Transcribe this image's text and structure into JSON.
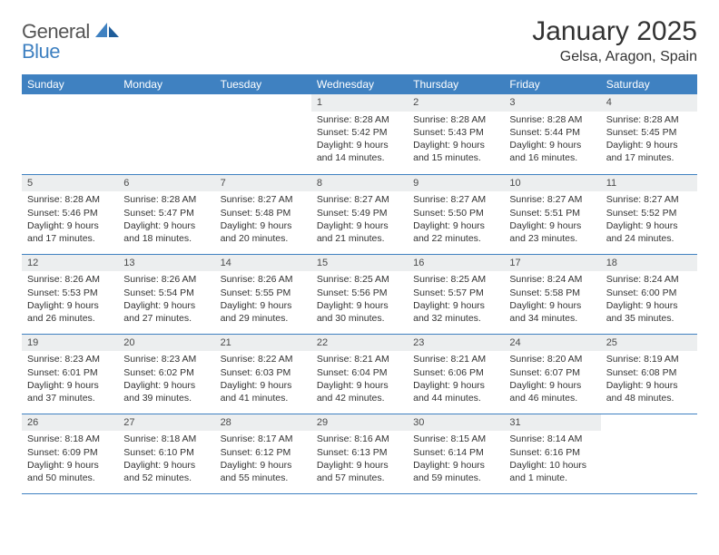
{
  "brand": {
    "part1": "General",
    "part2": "Blue"
  },
  "title": "January 2025",
  "location": "Gelsa, Aragon, Spain",
  "colors": {
    "header_bg": "#3f81c1",
    "header_fg": "#ffffff",
    "daynum_bg": "#eceeef",
    "rule": "#3f81c1",
    "text": "#333333"
  },
  "day_names": [
    "Sunday",
    "Monday",
    "Tuesday",
    "Wednesday",
    "Thursday",
    "Friday",
    "Saturday"
  ],
  "weeks": [
    [
      null,
      null,
      null,
      {
        "n": "1",
        "sr": "Sunrise: 8:28 AM",
        "ss": "Sunset: 5:42 PM",
        "dl": "Daylight: 9 hours and 14 minutes."
      },
      {
        "n": "2",
        "sr": "Sunrise: 8:28 AM",
        "ss": "Sunset: 5:43 PM",
        "dl": "Daylight: 9 hours and 15 minutes."
      },
      {
        "n": "3",
        "sr": "Sunrise: 8:28 AM",
        "ss": "Sunset: 5:44 PM",
        "dl": "Daylight: 9 hours and 16 minutes."
      },
      {
        "n": "4",
        "sr": "Sunrise: 8:28 AM",
        "ss": "Sunset: 5:45 PM",
        "dl": "Daylight: 9 hours and 17 minutes."
      }
    ],
    [
      {
        "n": "5",
        "sr": "Sunrise: 8:28 AM",
        "ss": "Sunset: 5:46 PM",
        "dl": "Daylight: 9 hours and 17 minutes."
      },
      {
        "n": "6",
        "sr": "Sunrise: 8:28 AM",
        "ss": "Sunset: 5:47 PM",
        "dl": "Daylight: 9 hours and 18 minutes."
      },
      {
        "n": "7",
        "sr": "Sunrise: 8:27 AM",
        "ss": "Sunset: 5:48 PM",
        "dl": "Daylight: 9 hours and 20 minutes."
      },
      {
        "n": "8",
        "sr": "Sunrise: 8:27 AM",
        "ss": "Sunset: 5:49 PM",
        "dl": "Daylight: 9 hours and 21 minutes."
      },
      {
        "n": "9",
        "sr": "Sunrise: 8:27 AM",
        "ss": "Sunset: 5:50 PM",
        "dl": "Daylight: 9 hours and 22 minutes."
      },
      {
        "n": "10",
        "sr": "Sunrise: 8:27 AM",
        "ss": "Sunset: 5:51 PM",
        "dl": "Daylight: 9 hours and 23 minutes."
      },
      {
        "n": "11",
        "sr": "Sunrise: 8:27 AM",
        "ss": "Sunset: 5:52 PM",
        "dl": "Daylight: 9 hours and 24 minutes."
      }
    ],
    [
      {
        "n": "12",
        "sr": "Sunrise: 8:26 AM",
        "ss": "Sunset: 5:53 PM",
        "dl": "Daylight: 9 hours and 26 minutes."
      },
      {
        "n": "13",
        "sr": "Sunrise: 8:26 AM",
        "ss": "Sunset: 5:54 PM",
        "dl": "Daylight: 9 hours and 27 minutes."
      },
      {
        "n": "14",
        "sr": "Sunrise: 8:26 AM",
        "ss": "Sunset: 5:55 PM",
        "dl": "Daylight: 9 hours and 29 minutes."
      },
      {
        "n": "15",
        "sr": "Sunrise: 8:25 AM",
        "ss": "Sunset: 5:56 PM",
        "dl": "Daylight: 9 hours and 30 minutes."
      },
      {
        "n": "16",
        "sr": "Sunrise: 8:25 AM",
        "ss": "Sunset: 5:57 PM",
        "dl": "Daylight: 9 hours and 32 minutes."
      },
      {
        "n": "17",
        "sr": "Sunrise: 8:24 AM",
        "ss": "Sunset: 5:58 PM",
        "dl": "Daylight: 9 hours and 34 minutes."
      },
      {
        "n": "18",
        "sr": "Sunrise: 8:24 AM",
        "ss": "Sunset: 6:00 PM",
        "dl": "Daylight: 9 hours and 35 minutes."
      }
    ],
    [
      {
        "n": "19",
        "sr": "Sunrise: 8:23 AM",
        "ss": "Sunset: 6:01 PM",
        "dl": "Daylight: 9 hours and 37 minutes."
      },
      {
        "n": "20",
        "sr": "Sunrise: 8:23 AM",
        "ss": "Sunset: 6:02 PM",
        "dl": "Daylight: 9 hours and 39 minutes."
      },
      {
        "n": "21",
        "sr": "Sunrise: 8:22 AM",
        "ss": "Sunset: 6:03 PM",
        "dl": "Daylight: 9 hours and 41 minutes."
      },
      {
        "n": "22",
        "sr": "Sunrise: 8:21 AM",
        "ss": "Sunset: 6:04 PM",
        "dl": "Daylight: 9 hours and 42 minutes."
      },
      {
        "n": "23",
        "sr": "Sunrise: 8:21 AM",
        "ss": "Sunset: 6:06 PM",
        "dl": "Daylight: 9 hours and 44 minutes."
      },
      {
        "n": "24",
        "sr": "Sunrise: 8:20 AM",
        "ss": "Sunset: 6:07 PM",
        "dl": "Daylight: 9 hours and 46 minutes."
      },
      {
        "n": "25",
        "sr": "Sunrise: 8:19 AM",
        "ss": "Sunset: 6:08 PM",
        "dl": "Daylight: 9 hours and 48 minutes."
      }
    ],
    [
      {
        "n": "26",
        "sr": "Sunrise: 8:18 AM",
        "ss": "Sunset: 6:09 PM",
        "dl": "Daylight: 9 hours and 50 minutes."
      },
      {
        "n": "27",
        "sr": "Sunrise: 8:18 AM",
        "ss": "Sunset: 6:10 PM",
        "dl": "Daylight: 9 hours and 52 minutes."
      },
      {
        "n": "28",
        "sr": "Sunrise: 8:17 AM",
        "ss": "Sunset: 6:12 PM",
        "dl": "Daylight: 9 hours and 55 minutes."
      },
      {
        "n": "29",
        "sr": "Sunrise: 8:16 AM",
        "ss": "Sunset: 6:13 PM",
        "dl": "Daylight: 9 hours and 57 minutes."
      },
      {
        "n": "30",
        "sr": "Sunrise: 8:15 AM",
        "ss": "Sunset: 6:14 PM",
        "dl": "Daylight: 9 hours and 59 minutes."
      },
      {
        "n": "31",
        "sr": "Sunrise: 8:14 AM",
        "ss": "Sunset: 6:16 PM",
        "dl": "Daylight: 10 hours and 1 minute."
      },
      null
    ]
  ]
}
